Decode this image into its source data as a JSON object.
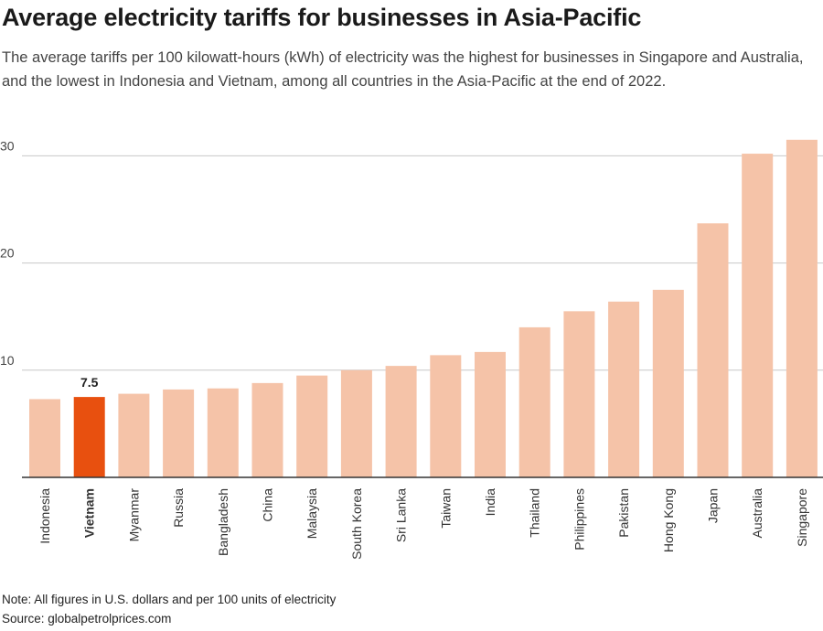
{
  "header": {
    "title": "Average electricity tariffs for businesses in Asia-Pacific",
    "subtitle": "The average tariffs per 100 kilowatt-hours (kWh) of electricity was the highest for businesses in Singapore and Australia, and the lowest in Indonesia and Vietnam, among all countries in the Asia-Pacific at the end of 2022."
  },
  "footer": {
    "note": "Note: All figures in U.S. dollars and per 100 units of electricity",
    "source": "Source: globalpetrolprices.com"
  },
  "colors": {
    "bar": "#f5c3a8",
    "highlight": "#e8500f",
    "grid": "#c8c8c8",
    "axis": "#333333"
  },
  "chart_data": {
    "type": "bar",
    "title": "Average electricity tariffs for businesses in Asia-Pacific",
    "xlabel": "",
    "ylabel": "",
    "ylim": [
      0,
      32
    ],
    "yticks": [
      10,
      20,
      30
    ],
    "grid": true,
    "categories": [
      "Indonesia",
      "Vietnam",
      "Myanmar",
      "Russia",
      "Bangladesh",
      "China",
      "Malaysia",
      "South Korea",
      "Sri Lanka",
      "Taiwan",
      "India",
      "Thailand",
      "Philippines",
      "Pakistan",
      "Hong Kong",
      "Japan",
      "Australia",
      "Singapore"
    ],
    "values": [
      7.3,
      7.5,
      7.8,
      8.2,
      8.3,
      8.8,
      9.5,
      10.0,
      10.4,
      11.4,
      11.7,
      14.0,
      15.5,
      16.4,
      17.5,
      23.7,
      30.2,
      31.5
    ],
    "highlight": "Vietnam",
    "annotations": [
      {
        "category": "Vietnam",
        "label": "7.5"
      }
    ]
  }
}
